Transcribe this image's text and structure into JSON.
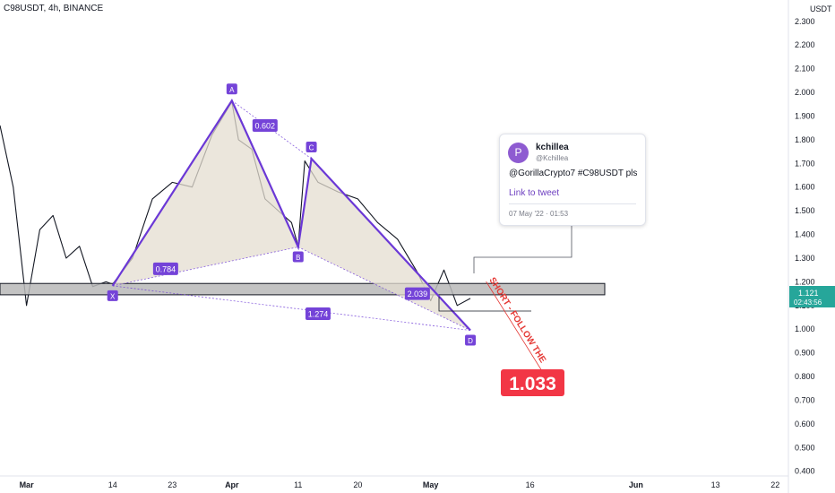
{
  "symbol_label": "C98USDT, 4h, BINANCE",
  "currency": "USDT",
  "price_badge": {
    "price": "1.121",
    "countdown": "02:43:56"
  },
  "tweet": {
    "avatar_letter": "P",
    "name": "kchillea",
    "handle": "@Kchillea",
    "text": "@GorillaCrypto7 #C98USDT pls",
    "link_label": "Link to tweet",
    "date": "07 May '22 · 01:53"
  },
  "target_badge": "1.033",
  "short_text": "SHORT - FOLLOW THE",
  "colors": {
    "pattern_line": "#6b38d6",
    "pattern_fill": "#e4ddd0",
    "label_bg": "#7443d8",
    "target_badge": "#f23645",
    "price_badge": "#26a69a",
    "candle": "#131722",
    "zone_fill": "#b8b8b8"
  },
  "chart_data": {
    "type": "line",
    "title": "C98USDT, 4h, BINANCE",
    "xlabel": "",
    "ylabel": "",
    "ylim": [
      0.38,
      2.39
    ],
    "grid": false,
    "date_range": [
      "2022-02-25",
      "2022-06-24"
    ],
    "x_ticks": [
      {
        "label": "Mar",
        "date": "2022-03-01"
      },
      {
        "label": "14",
        "date": "2022-03-14"
      },
      {
        "label": "23",
        "date": "2022-03-23"
      },
      {
        "label": "Apr",
        "date": "2022-04-01"
      },
      {
        "label": "11",
        "date": "2022-04-11"
      },
      {
        "label": "20",
        "date": "2022-04-20"
      },
      {
        "label": "May",
        "date": "2022-05-01"
      },
      {
        "label": "16",
        "date": "2022-05-16"
      },
      {
        "label": "Jun",
        "date": "2022-06-01"
      },
      {
        "label": "13",
        "date": "2022-06-13"
      },
      {
        "label": "22",
        "date": "2022-06-22"
      }
    ],
    "y_ticks": [
      "2.300",
      "2.200",
      "2.100",
      "2.000",
      "1.900",
      "1.800",
      "1.700",
      "1.600",
      "1.500",
      "1.400",
      "1.300",
      "1.200",
      "1.100",
      "1.000",
      "0.900",
      "0.800",
      "0.700",
      "0.600",
      "0.500",
      "0.400"
    ],
    "series": [
      {
        "x": [
          "2022-02-25",
          "2022-02-27",
          "2022-03-01",
          "2022-03-03",
          "2022-03-05",
          "2022-03-07",
          "2022-03-09",
          "2022-03-11",
          "2022-03-13",
          "2022-03-14",
          "2022-03-17",
          "2022-03-20",
          "2022-03-23",
          "2022-03-26",
          "2022-03-29",
          "2022-04-01",
          "2022-04-02",
          "2022-04-04",
          "2022-04-06",
          "2022-04-08",
          "2022-04-10",
          "2022-04-11",
          "2022-04-12",
          "2022-04-14",
          "2022-04-17",
          "2022-04-20",
          "2022-04-23",
          "2022-04-26",
          "2022-04-29",
          "2022-05-01",
          "2022-05-03",
          "2022-05-05",
          "2022-05-07"
        ],
        "values": [
          1.86,
          1.6,
          1.1,
          1.42,
          1.48,
          1.3,
          1.35,
          1.18,
          1.2,
          1.19,
          1.3,
          1.55,
          1.62,
          1.6,
          1.82,
          1.96,
          1.8,
          1.76,
          1.55,
          1.5,
          1.45,
          1.35,
          1.71,
          1.62,
          1.58,
          1.55,
          1.45,
          1.38,
          1.24,
          1.12,
          1.25,
          1.1,
          1.13
        ]
      }
    ],
    "pattern": {
      "points": [
        {
          "label": "X",
          "date": "2022-03-14",
          "price": 1.183
        },
        {
          "label": "A",
          "date": "2022-04-01",
          "price": 1.965
        },
        {
          "label": "B",
          "date": "2022-04-11",
          "price": 1.347
        },
        {
          "label": "C",
          "date": "2022-04-13",
          "price": 1.72
        },
        {
          "label": "D",
          "date": "2022-05-07",
          "price": 0.995
        }
      ],
      "ratios": [
        {
          "label": "0.602",
          "date": "2022-04-06",
          "price": 1.86
        },
        {
          "label": "0.784",
          "date": "2022-03-22",
          "price": 1.255
        },
        {
          "label": "2.039",
          "date": "2022-04-29",
          "price": 1.15
        },
        {
          "label": "1.274",
          "date": "2022-04-14",
          "price": 1.065
        }
      ]
    },
    "zone": {
      "from": 1.145,
      "to": 1.193
    },
    "target": {
      "price": 1.033
    }
  }
}
